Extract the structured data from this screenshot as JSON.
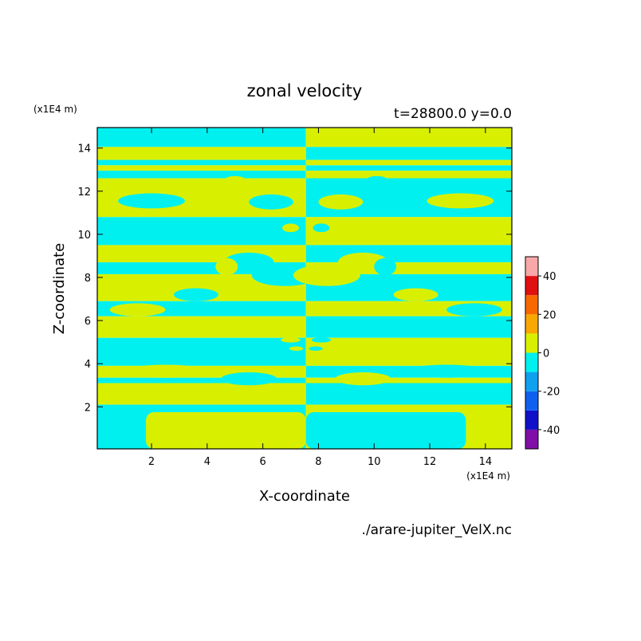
{
  "chart_data": {
    "type": "heatmap",
    "title": "zonal velocity",
    "subtitle": "t=28800.0 y=0.0",
    "xlabel": "X-coordinate",
    "ylabel": "Z-coordinate",
    "x_unit": "(x1E4 m)",
    "z_unit": "(x1E4 m)",
    "xlim": [
      0.05,
      14.95
    ],
    "ylim": [
      0.05,
      14.95
    ],
    "x_ticks": [
      2,
      4,
      6,
      8,
      10,
      12,
      14
    ],
    "y_ticks": [
      2,
      4,
      6,
      8,
      10,
      12,
      14
    ],
    "colorbar": {
      "range": [
        -50,
        50
      ],
      "levels": [
        -50,
        -40,
        -30,
        -20,
        -10,
        0,
        10,
        20,
        30,
        40,
        50
      ],
      "colors": [
        "#7f0fa8",
        "#1010c8",
        "#1060f0",
        "#10a0f0",
        "#00f0f0",
        "#d8f000",
        "#f8a800",
        "#f86800",
        "#e01010",
        "#f8a8a8"
      ],
      "ticks": [
        -40,
        -20,
        0,
        20,
        40
      ],
      "tick_labels": [
        "-40",
        "-20",
        "0",
        "20",
        "40"
      ]
    },
    "field_colors": {
      "positive": "#d8f000",
      "negative": "#00f0f0"
    },
    "bands_left": [
      {
        "z": [
          14.05,
          14.95
        ],
        "sign": "negative"
      },
      {
        "z": [
          13.45,
          14.05
        ],
        "sign": "positive"
      },
      {
        "z": [
          13.2,
          13.45
        ],
        "sign": "negative"
      },
      {
        "z": [
          12.95,
          13.2
        ],
        "sign": "positive"
      },
      {
        "z": [
          12.6,
          12.95
        ],
        "sign": "negative"
      },
      {
        "z": [
          10.8,
          12.6
        ],
        "sign": "positive"
      },
      {
        "z": [
          9.5,
          10.8
        ],
        "sign": "negative"
      },
      {
        "z": [
          8.7,
          9.5
        ],
        "sign": "positive"
      },
      {
        "z": [
          8.15,
          8.7
        ],
        "sign": "negative"
      },
      {
        "z": [
          6.9,
          8.15
        ],
        "sign": "positive"
      },
      {
        "z": [
          6.2,
          6.9
        ],
        "sign": "negative"
      },
      {
        "z": [
          5.2,
          6.2
        ],
        "sign": "positive"
      },
      {
        "z": [
          3.9,
          5.2
        ],
        "sign": "negative"
      },
      {
        "z": [
          3.35,
          3.9
        ],
        "sign": "positive"
      },
      {
        "z": [
          3.1,
          3.35
        ],
        "sign": "negative"
      },
      {
        "z": [
          2.1,
          3.1
        ],
        "sign": "positive"
      },
      {
        "z": [
          0.05,
          2.1
        ],
        "sign": "negative"
      }
    ],
    "blobs_left": [
      {
        "x": 2.0,
        "z": 11.55,
        "rx": 1.2,
        "rz": 0.35,
        "sign": "negative"
      },
      {
        "x": 6.3,
        "z": 11.5,
        "rx": 0.8,
        "rz": 0.35,
        "sign": "negative"
      },
      {
        "x": 5.0,
        "z": 12.5,
        "rx": 0.4,
        "rz": 0.2,
        "sign": "positive"
      },
      {
        "x": 5.5,
        "z": 8.7,
        "rx": 0.9,
        "rz": 0.45,
        "sign": "negative"
      },
      {
        "x": 4.7,
        "z": 8.5,
        "rx": 0.4,
        "rz": 0.4,
        "sign": "positive"
      },
      {
        "x": 6.8,
        "z": 8.1,
        "rx": 1.2,
        "rz": 0.5,
        "sign": "negative"
      },
      {
        "x": 3.6,
        "z": 7.2,
        "rx": 0.8,
        "rz": 0.3,
        "sign": "negative"
      },
      {
        "x": 1.5,
        "z": 6.5,
        "rx": 1.0,
        "rz": 0.3,
        "sign": "positive"
      },
      {
        "x": 2.5,
        "z": 3.65,
        "rx": 1.5,
        "rz": 0.3,
        "sign": "positive"
      },
      {
        "x": 5.5,
        "z": 3.3,
        "rx": 1.0,
        "rz": 0.3,
        "sign": "negative"
      },
      {
        "x": 7.0,
        "z": 10.3,
        "rx": 0.3,
        "rz": 0.2,
        "sign": "positive"
      },
      {
        "x": 7.0,
        "z": 5.1,
        "rx": 0.35,
        "rz": 0.12,
        "sign": "positive"
      },
      {
        "x": 7.2,
        "z": 4.7,
        "rx": 0.25,
        "rz": 0.1,
        "sign": "positive"
      }
    ],
    "bottom_patch": {
      "x": [
        1.8,
        7.55
      ],
      "z": [
        0.05,
        1.75
      ],
      "sign": "positive"
    },
    "footer": "./arare-jupiter_VelX.nc"
  }
}
